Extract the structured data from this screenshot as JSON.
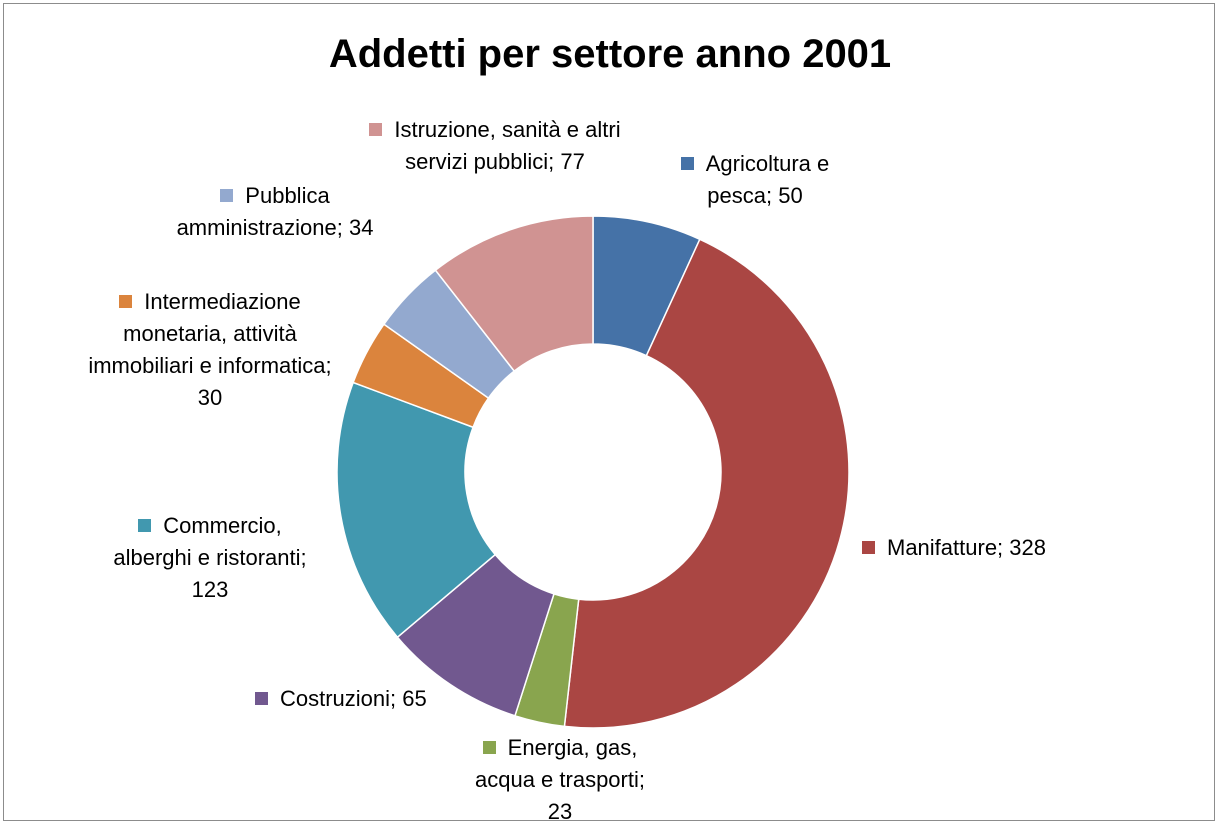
{
  "chart_data": {
    "type": "pie",
    "title": "Addetti per settore anno 2001",
    "donut": true,
    "legend": "data labels beside slices",
    "slices": [
      {
        "label": "Agricoltura e pesca",
        "value": 50,
        "color": "#4572a7",
        "text": "Agricoltura e pesca; 50"
      },
      {
        "label": "Manifatture",
        "value": 328,
        "color": "#aa4643",
        "text": "Manifatture; 328"
      },
      {
        "label": "Energia, gas, acqua e trasporti",
        "value": 23,
        "color": "#89a54e",
        "text": "Energia, gas, acqua e trasporti; 23"
      },
      {
        "label": "Costruzioni",
        "value": 65,
        "color": "#71588f",
        "text": "Costruzioni; 65"
      },
      {
        "label": "Commercio, alberghi e ristoranti",
        "value": 123,
        "color": "#4198af",
        "text": "Commercio, alberghi e ristoranti; 123"
      },
      {
        "label": "Intermediazione monetaria, attività immobiliari e informatica",
        "value": 30,
        "color": "#db843d",
        "text": "Intermediazione monetaria, attività immobiliari e informatica; 30"
      },
      {
        "label": "Pubblica amministrazione",
        "value": 34,
        "color": "#93a9cf",
        "text": "Pubblica amministrazione; 34"
      },
      {
        "label": "Istruzione, sanità e altri servizi pubblici",
        "value": 77,
        "color": "#d09392",
        "text": "Istruzione, sanità e altri servizi pubblici; 77"
      }
    ]
  }
}
